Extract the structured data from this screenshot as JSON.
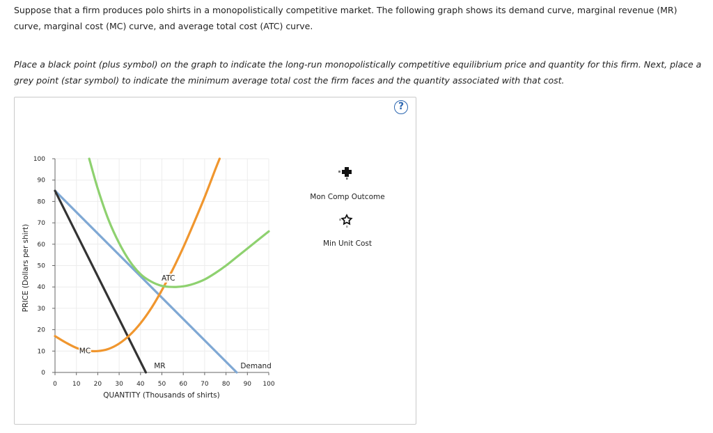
{
  "question": {
    "intro": "Suppose that a firm produces polo shirts in a monopolistically competitive market. The following graph shows its demand curve, marginal revenue (MR) curve, marginal cost (MC) curve, and average total cost (ATC) curve.",
    "instruction": "Place a black point (plus symbol) on the graph to indicate the long-run monopolistically competitive equilibrium price and quantity for this firm. Next, place a grey point (star symbol) to indicate the minimum average total cost the firm faces and the quantity associated with that cost."
  },
  "help_label": "?",
  "palette": [
    {
      "name": "plus-tool",
      "label": "Mon Comp Outcome",
      "icon": "plus-icon",
      "color": "#111111"
    },
    {
      "name": "star-tool",
      "label": "Min Unit Cost",
      "icon": "star-icon",
      "color": "#888888"
    }
  ],
  "chart_data": {
    "type": "line",
    "xlabel": "QUANTITY (Thousands of shirts)",
    "ylabel": "PRICE (Dollars per shirt)",
    "xlim": [
      0,
      100
    ],
    "ylim": [
      0,
      100
    ],
    "xticks": [
      "0",
      "10",
      "20",
      "30",
      "40",
      "50",
      "60",
      "70",
      "80",
      "90",
      "100"
    ],
    "yticks": [
      "0",
      "10",
      "20",
      "30",
      "40",
      "50",
      "60",
      "70",
      "80",
      "90",
      "100"
    ],
    "grid": true,
    "series": [
      {
        "name": "Demand",
        "color": "#7fa8d4",
        "points": [
          [
            0,
            85
          ],
          [
            85,
            0
          ]
        ]
      },
      {
        "name": "MR",
        "color": "#333333",
        "points": [
          [
            0,
            85
          ],
          [
            42.5,
            0
          ]
        ]
      },
      {
        "name": "MC",
        "color": "#f0962e",
        "points": [
          [
            0,
            17
          ],
          [
            5,
            14
          ],
          [
            10,
            11.5
          ],
          [
            15,
            10.2
          ],
          [
            20,
            10
          ],
          [
            25,
            11
          ],
          [
            30,
            13.5
          ],
          [
            35,
            17.5
          ],
          [
            40,
            23
          ],
          [
            45,
            30
          ],
          [
            50,
            38.5
          ],
          [
            55,
            48
          ],
          [
            60,
            58.5
          ],
          [
            65,
            70
          ],
          [
            70,
            82
          ],
          [
            75,
            95
          ],
          [
            77,
            100
          ]
        ]
      },
      {
        "name": "ATC",
        "color": "#8ed16f",
        "points": [
          [
            16,
            100
          ],
          [
            20,
            86
          ],
          [
            25,
            71.5
          ],
          [
            30,
            60.5
          ],
          [
            35,
            52
          ],
          [
            40,
            46
          ],
          [
            45,
            42.5
          ],
          [
            50,
            40.5
          ],
          [
            55,
            40
          ],
          [
            60,
            40.3
          ],
          [
            65,
            41.5
          ],
          [
            70,
            43.5
          ],
          [
            75,
            46.5
          ],
          [
            80,
            50
          ],
          [
            85,
            54
          ],
          [
            90,
            58
          ],
          [
            100,
            66
          ]
        ]
      }
    ],
    "curve_labels": [
      {
        "text": "ATC",
        "at": [
          53,
          43
        ]
      },
      {
        "text": "MC",
        "at": [
          14,
          9
        ]
      },
      {
        "text": "MR",
        "at": [
          49,
          2
        ]
      },
      {
        "text": "Demand",
        "at": [
          94,
          2
        ]
      }
    ]
  }
}
